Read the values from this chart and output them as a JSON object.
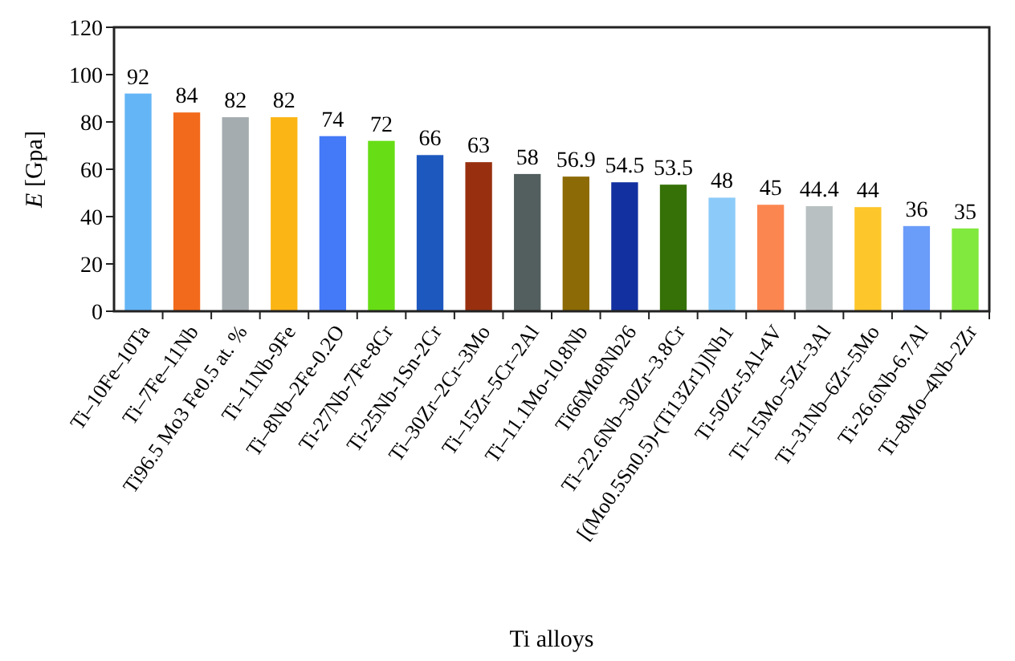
{
  "chart_data": {
    "type": "bar",
    "xlabel": "Ti alloys",
    "ylabel": "E [Gpa]",
    "categories": [
      "Ti–10Fe–10Ta",
      "Ti–7Fe–11Nb",
      "Ti96.5 Mo3 Fe0.5 at. %",
      "Ti–11Nb-9Fe",
      "Ti–8Nb–2Fe-0.2O",
      "Ti-27Nb-7Fe-8Cr",
      "Ti-25Nb-1Sn-2Cr",
      "Ti–30Zr–2Cr–3Mo",
      "Ti–15Zr–5Cr–2Al",
      "Ti–11.1Mo-10.8Nb",
      "Ti66Mo8Nb26",
      "Ti–22.6Nb–30Zr–3.8Cr",
      "[(Mo0.5Sn0.5)-(Ti13Zr1)]Nb1",
      "Ti-50Zr-5Al-4V",
      "Ti–15Mo–5Zr–3Al",
      "Ti–31Nb–6Zr–5Mo",
      "Ti-26.6Nb-6.7Al",
      "Ti–8Mo–4Nb–2Zr"
    ],
    "values": [
      92,
      84,
      82,
      82,
      74,
      72,
      66,
      63,
      58,
      56.9,
      54.5,
      53.5,
      48,
      45,
      44.4,
      44,
      36,
      35
    ],
    "colors": [
      "#64b5f6",
      "#f26a1b",
      "#a5acaf",
      "#fbb514",
      "#4479f7",
      "#66dd15",
      "#1d58bf",
      "#983010",
      "#535e5e",
      "#8c6a05",
      "#1230a0",
      "#357106",
      "#8ccbf9",
      "#fc8650",
      "#b9c0c1",
      "#fdc62a",
      "#6a9cf9",
      "#81e83e"
    ],
    "ylim": [
      0,
      120
    ],
    "yticks": [
      0,
      20,
      40,
      60,
      80,
      100,
      120
    ],
    "data_labels": true
  }
}
